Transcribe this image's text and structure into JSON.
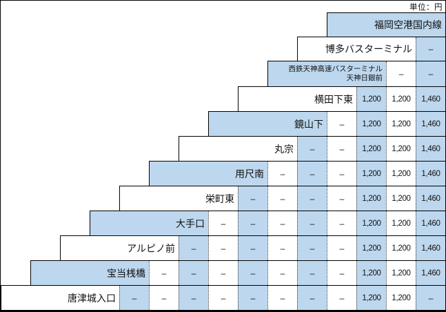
{
  "unit_label": "単位：円",
  "colors": {
    "cell_blue": "#BDD7EE",
    "cell_white": "#FFFFFF",
    "line": "#000000"
  },
  "table": {
    "rows": [
      {
        "label": "福岡空港国内線",
        "cells": []
      },
      {
        "label": "博多バスターミナル",
        "cells": [
          "–"
        ]
      },
      {
        "label": "西鉄天神高速バスターミナル",
        "label2": "天神日銀前",
        "cells": [
          "–",
          "–"
        ]
      },
      {
        "label": "横田下東",
        "cells": [
          "1,200",
          "1,200",
          "1,460"
        ]
      },
      {
        "label": "鏡山下",
        "cells": [
          "–",
          "1,200",
          "1,200",
          "1,460"
        ]
      },
      {
        "label": "丸宗",
        "cells": [
          "–",
          "–",
          "1,200",
          "1,200",
          "1,460"
        ]
      },
      {
        "label": "用尺南",
        "cells": [
          "–",
          "–",
          "–",
          "1,200",
          "1,200",
          "1,460"
        ]
      },
      {
        "label": "栄町東",
        "cells": [
          "–",
          "–",
          "–",
          "–",
          "1,200",
          "1,200",
          "1,460"
        ]
      },
      {
        "label": "大手口",
        "cells": [
          "–",
          "–",
          "–",
          "–",
          "–",
          "1,200",
          "1,200",
          "1,460"
        ]
      },
      {
        "label": "アルピノ前",
        "cells": [
          "–",
          "–",
          "–",
          "–",
          "–",
          "–",
          "1,200",
          "1,200",
          "1,460"
        ]
      },
      {
        "label": "宝当桟橋",
        "cells": [
          "–",
          "–",
          "–",
          "–",
          "–",
          "–",
          "–",
          "1,200",
          "1,200",
          "1,460"
        ]
      },
      {
        "label": "唐津城入口",
        "cells": [
          "–",
          "–",
          "–",
          "–",
          "–",
          "–",
          "–",
          "–",
          "1,200",
          "1,200",
          "–"
        ]
      }
    ]
  }
}
